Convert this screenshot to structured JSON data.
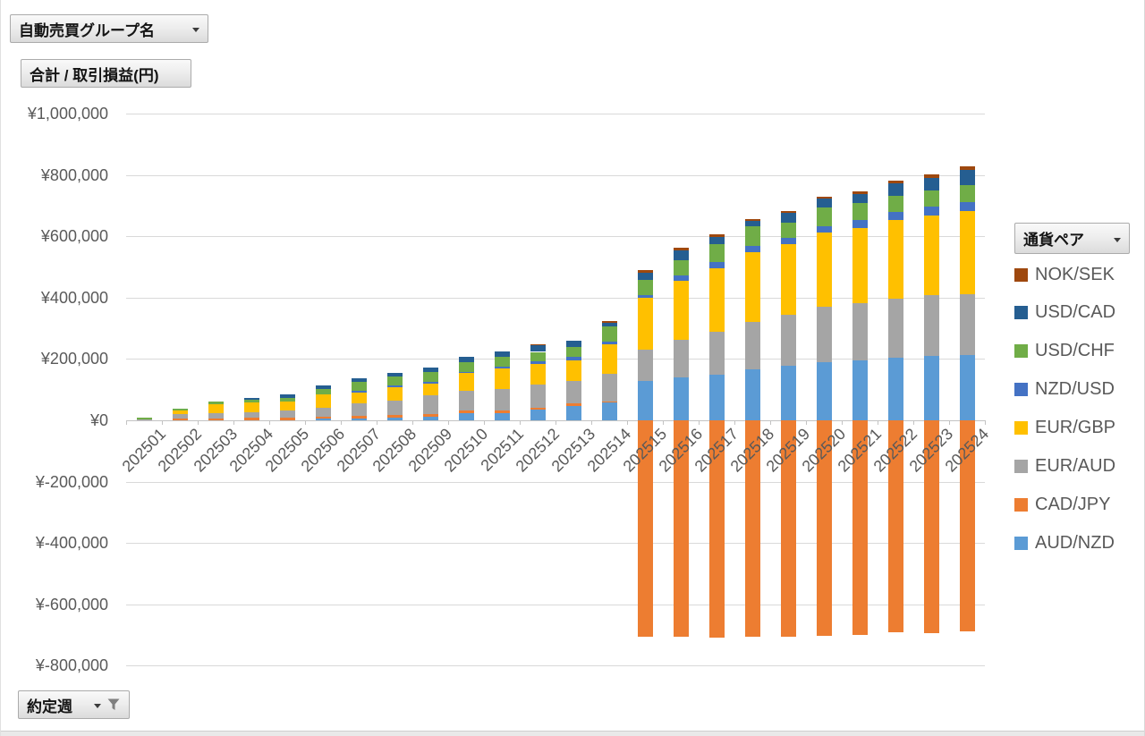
{
  "buttons": {
    "group_field": "自動売買グループ名",
    "value_field": "合計 / 取引損益(円)",
    "legend_field": "通貨ペア",
    "axis_field": "約定週"
  },
  "chart_data": {
    "type": "bar",
    "stacked": true,
    "units": "JPY",
    "value_axis_title": "合計 / 取引損益(円)",
    "categories": [
      "202501",
      "202502",
      "202503",
      "202504",
      "202505",
      "202506",
      "202507",
      "202508",
      "202509",
      "202510",
      "202511",
      "202512",
      "202513",
      "202514",
      "202515",
      "202516",
      "202517",
      "202518",
      "202519",
      "202520",
      "202521",
      "202522",
      "202523",
      "202524"
    ],
    "x_label_rotation_deg": -45,
    "grid": true,
    "y_axis": {
      "min": -800000,
      "max": 1000000,
      "step": 200000,
      "tick_values": [
        1000000,
        800000,
        600000,
        400000,
        200000,
        0,
        -200000,
        -400000,
        -600000,
        -800000
      ],
      "tick_labels": [
        "¥1,000,000",
        "¥800,000",
        "¥600,000",
        "¥400,000",
        "¥200,000",
        "¥0",
        "¥-200,000",
        "¥-400,000",
        "¥-600,000",
        "¥-800,000"
      ]
    },
    "legend": {
      "title": "通貨ペア",
      "position": "right",
      "order_top_to_bottom": [
        "NOK/SEK",
        "USD/CAD",
        "USD/CHF",
        "NZD/USD",
        "EUR/GBP",
        "EUR/AUD",
        "CAD/JPY",
        "AUD/NZD"
      ]
    },
    "series": [
      {
        "name": "AUD/NZD",
        "color": "#5B9BD5",
        "values": [
          0,
          0,
          0,
          0,
          0,
          5000,
          7000,
          9000,
          13000,
          24000,
          22000,
          34000,
          47000,
          57000,
          127000,
          140000,
          149000,
          166000,
          179000,
          190000,
          195000,
          205000,
          210000,
          212000
        ]
      },
      {
        "name": "CAD/JPY",
        "color": "#ED7D31",
        "values": [
          0,
          7000,
          6000,
          8000,
          10000,
          7000,
          7000,
          8000,
          6000,
          8000,
          9000,
          8000,
          7000,
          5000,
          -705000,
          -705000,
          -707000,
          -705000,
          -705000,
          -703000,
          -701000,
          -692000,
          -695000,
          -688000
        ]
      },
      {
        "name": "EUR/AUD",
        "color": "#A5A5A5",
        "values": [
          4000,
          12000,
          17000,
          17000,
          21000,
          29000,
          40000,
          48000,
          63000,
          63000,
          71000,
          76000,
          74000,
          90000,
          102000,
          122000,
          139000,
          156000,
          166000,
          181000,
          186000,
          192000,
          198000,
          200000
        ]
      },
      {
        "name": "EUR/GBP",
        "color": "#FFC000",
        "values": [
          0,
          13000,
          30000,
          33000,
          30000,
          43000,
          37000,
          42000,
          38000,
          59000,
          68000,
          66000,
          68000,
          95000,
          169000,
          192000,
          207000,
          225000,
          228000,
          241000,
          247000,
          255000,
          259000,
          270000
        ]
      },
      {
        "name": "NZD/USD",
        "color": "#4472C4",
        "values": [
          0,
          0,
          0,
          0,
          0,
          0,
          6000,
          6000,
          4000,
          4000,
          6000,
          7000,
          10000,
          10000,
          9000,
          18000,
          20000,
          21000,
          22000,
          22000,
          26000,
          26000,
          29000,
          30000
        ]
      },
      {
        "name": "USD/CHF",
        "color": "#70AD47",
        "values": [
          5000,
          7000,
          8000,
          10000,
          12000,
          19000,
          27000,
          29000,
          32000,
          32000,
          31000,
          32000,
          32000,
          49000,
          50000,
          49000,
          59000,
          66000,
          49000,
          59000,
          54000,
          54000,
          54000,
          55000
        ]
      },
      {
        "name": "USD/CAD",
        "color": "#255E91",
        "values": [
          0,
          0,
          0,
          6000,
          12000,
          12000,
          13000,
          12000,
          16000,
          16000,
          18000,
          22000,
          22000,
          12000,
          24000,
          34000,
          25000,
          17000,
          32000,
          29000,
          31000,
          42000,
          41000,
          48000
        ]
      },
      {
        "name": "NOK/SEK",
        "color": "#9E480E",
        "values": [
          0,
          0,
          0,
          0,
          0,
          0,
          0,
          0,
          0,
          0,
          0,
          3000,
          0,
          7000,
          8000,
          9000,
          7000,
          5000,
          7000,
          7000,
          8000,
          7000,
          10000,
          12000
        ]
      }
    ]
  }
}
